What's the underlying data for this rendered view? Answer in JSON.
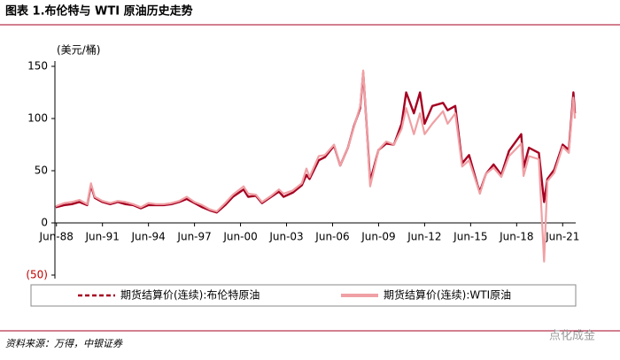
{
  "chart_data": {
    "type": "line",
    "title": "图表 1.布伦特与 WTI 原油历史走势",
    "y_label": "(美元/桶)",
    "source": "资料来源：万得，中银证券",
    "watermark": "点化成金",
    "x": [
      1988.45,
      1989.0,
      1989.5,
      1990.0,
      1990.5,
      1990.75,
      1991.0,
      1991.5,
      1992.0,
      1992.5,
      1993.0,
      1993.5,
      1994.0,
      1994.5,
      1995.0,
      1995.5,
      1996.0,
      1996.5,
      1997.0,
      1997.5,
      1998.0,
      1998.5,
      1998.95,
      1999.5,
      2000.0,
      2000.7,
      2001.0,
      2001.5,
      2001.9,
      2002.5,
      2003.0,
      2003.3,
      2003.9,
      2004.5,
      2004.8,
      2005.0,
      2005.6,
      2006.0,
      2006.6,
      2007.0,
      2007.5,
      2007.9,
      2008.3,
      2008.5,
      2008.95,
      2009.5,
      2010.0,
      2010.5,
      2011.0,
      2011.3,
      2011.8,
      2012.2,
      2012.5,
      2013.0,
      2013.7,
      2014.0,
      2014.5,
      2014.95,
      2015.4,
      2015.95,
      2016.1,
      2016.5,
      2017.0,
      2017.5,
      2018.0,
      2018.8,
      2018.95,
      2019.3,
      2019.95,
      2020.29,
      2020.5,
      2020.95,
      2021.5,
      2021.9,
      2022.2,
      2022.3
    ],
    "series": [
      {
        "name": "期货结算价(连续):布伦特原油",
        "color": "#a50021",
        "values": [
          15,
          17,
          18,
          20,
          17,
          36,
          24,
          20,
          18,
          20,
          18,
          17,
          14,
          17,
          17,
          17,
          18,
          20,
          23,
          19,
          15,
          12,
          10,
          17,
          25,
          32,
          25,
          26,
          19,
          25,
          30,
          25,
          29,
          36,
          46,
          42,
          60,
          63,
          74,
          55,
          72,
          93,
          110,
          144,
          40,
          70,
          76,
          75,
          95,
          125,
          105,
          125,
          95,
          112,
          115,
          108,
          112,
          57,
          65,
          36,
          30,
          47,
          56,
          46,
          69,
          85,
          53,
          72,
          67,
          20,
          42,
          51,
          75,
          70,
          125,
          105
        ]
      },
      {
        "name": "期货结算价(连续):WTI原油",
        "color": "#f0a0a4",
        "values": [
          16,
          19,
          20,
          22,
          18,
          38,
          25,
          21,
          19,
          21,
          20,
          18,
          15,
          19,
          18,
          18,
          19,
          21,
          25,
          20,
          17,
          13,
          11,
          19,
          27,
          35,
          28,
          27,
          20,
          26,
          32,
          28,
          31,
          38,
          52,
          44,
          64,
          65,
          75,
          55,
          72,
          92,
          112,
          146,
          35,
          70,
          78,
          75,
          90,
          110,
          85,
          105,
          85,
          95,
          107,
          95,
          105,
          54,
          60,
          35,
          28,
          47,
          53,
          44,
          64,
          76,
          45,
          64,
          61,
          -37,
          40,
          48,
          73,
          67,
          120,
          100
        ]
      }
    ],
    "xlim": [
      1988.4,
      2022.35
    ],
    "xticks": [
      {
        "value": 1988.5,
        "label": "Jun-88"
      },
      {
        "value": 1991.5,
        "label": "Jun-91"
      },
      {
        "value": 1994.5,
        "label": "Jun-94"
      },
      {
        "value": 1997.5,
        "label": "Jun-97"
      },
      {
        "value": 2000.5,
        "label": "Jun-00"
      },
      {
        "value": 2003.5,
        "label": "Jun-03"
      },
      {
        "value": 2006.5,
        "label": "Jun-06"
      },
      {
        "value": 2009.5,
        "label": "Jun-09"
      },
      {
        "value": 2012.5,
        "label": "Jun-12"
      },
      {
        "value": 2015.5,
        "label": "Jun-15"
      },
      {
        "value": 2018.5,
        "label": "Jun-18"
      },
      {
        "value": 2021.5,
        "label": "Jun-21"
      }
    ],
    "ylim": [
      -50,
      150
    ],
    "yticks": [
      150,
      100,
      50,
      0,
      {
        "value": -50,
        "label": "(50)"
      }
    ],
    "negative_tick_color": "#c00000",
    "grid": false
  }
}
